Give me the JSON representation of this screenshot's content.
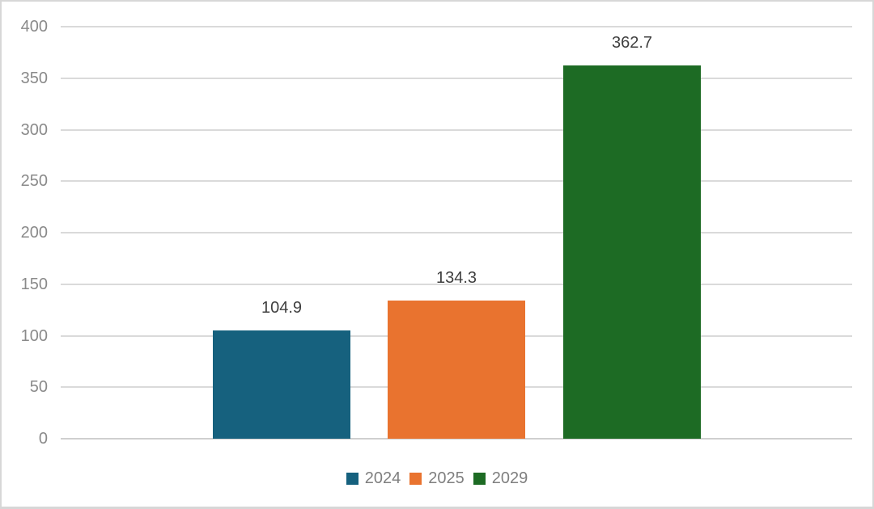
{
  "chart_data": {
    "type": "bar",
    "title": "",
    "xlabel": "",
    "ylabel": "",
    "categories": [
      ""
    ],
    "series": [
      {
        "name": "2024",
        "value": 104.9,
        "label": "104.9",
        "color": "#16617e"
      },
      {
        "name": "2025",
        "value": 134.3,
        "label": "134.3",
        "color": "#e9732f"
      },
      {
        "name": "2029",
        "value": 362.7,
        "label": "362.7",
        "color": "#1d6b24"
      }
    ],
    "ylim": [
      0,
      400
    ],
    "y_ticks": [
      0,
      50,
      100,
      150,
      200,
      250,
      300,
      350,
      400
    ],
    "grid": true,
    "legend_position": "bottom"
  },
  "colors": {
    "background": "#ffffff",
    "frame_border": "#d7d7d7",
    "gridline": "#dadada",
    "zero_line": "#cfcfcf",
    "axis_tick_text": "#8a8a8a",
    "data_label_text": "#3f3f3f",
    "legend_text": "#7f7f7f"
  }
}
